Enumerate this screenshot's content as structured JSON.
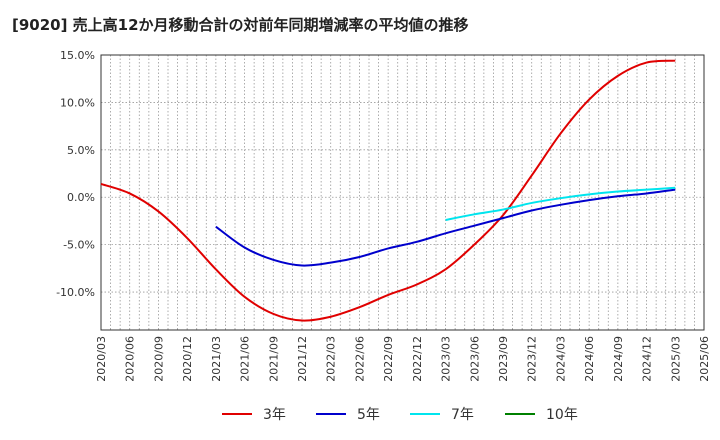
{
  "chart_data": {
    "type": "line",
    "title": "[9020]  売上高12か月移動合計の対前年同期増減率の平均値の推移",
    "xlabel": "",
    "ylabel": "",
    "x_ticks": [
      "2020/03",
      "2020/06",
      "2020/09",
      "2020/12",
      "2021/03",
      "2021/06",
      "2021/09",
      "2021/12",
      "2022/03",
      "2022/06",
      "2022/09",
      "2022/12",
      "2023/03",
      "2023/06",
      "2023/09",
      "2023/12",
      "2024/03",
      "2024/06",
      "2024/09",
      "2024/12",
      "2025/03",
      "2025/06"
    ],
    "y_ticks": [
      "15.0%",
      "10.0%",
      "5.0%",
      "0.0%",
      "-5.0%",
      "-10.0%"
    ],
    "ylim": [
      -14.0,
      15.0
    ],
    "grid": true,
    "legend_position": "bottom",
    "series": [
      {
        "name": "3年",
        "color": "#e00000",
        "points": [
          [
            "2020/03",
            1.4
          ],
          [
            "2020/06",
            0.4
          ],
          [
            "2020/09",
            -1.5
          ],
          [
            "2020/12",
            -4.3
          ],
          [
            "2021/03",
            -7.6
          ],
          [
            "2021/06",
            -10.5
          ],
          [
            "2021/09",
            -12.3
          ],
          [
            "2021/12",
            -13.0
          ],
          [
            "2022/03",
            -12.6
          ],
          [
            "2022/06",
            -11.6
          ],
          [
            "2022/09",
            -10.3
          ],
          [
            "2022/12",
            -9.2
          ],
          [
            "2023/03",
            -7.6
          ],
          [
            "2023/06",
            -5.0
          ],
          [
            "2023/09",
            -1.9
          ],
          [
            "2023/12",
            2.3
          ],
          [
            "2024/03",
            6.7
          ],
          [
            "2024/06",
            10.3
          ],
          [
            "2024/09",
            12.8
          ],
          [
            "2024/12",
            14.2
          ],
          [
            "2025/03",
            14.4
          ]
        ]
      },
      {
        "name": "5年",
        "color": "#0000cc",
        "points": [
          [
            "2021/03",
            -3.1
          ],
          [
            "2021/06",
            -5.3
          ],
          [
            "2021/09",
            -6.6
          ],
          [
            "2021/12",
            -7.2
          ],
          [
            "2022/03",
            -6.9
          ],
          [
            "2022/06",
            -6.3
          ],
          [
            "2022/09",
            -5.4
          ],
          [
            "2022/12",
            -4.7
          ],
          [
            "2023/03",
            -3.8
          ],
          [
            "2023/06",
            -3.0
          ],
          [
            "2023/09",
            -2.2
          ],
          [
            "2023/12",
            -1.4
          ],
          [
            "2024/03",
            -0.8
          ],
          [
            "2024/06",
            -0.3
          ],
          [
            "2024/09",
            0.1
          ],
          [
            "2024/12",
            0.4
          ],
          [
            "2025/03",
            0.8
          ]
        ]
      },
      {
        "name": "7年",
        "color": "#00e5ee",
        "points": [
          [
            "2023/03",
            -2.4
          ],
          [
            "2023/06",
            -1.8
          ],
          [
            "2023/09",
            -1.3
          ],
          [
            "2023/12",
            -0.6
          ],
          [
            "2024/03",
            -0.1
          ],
          [
            "2024/06",
            0.3
          ],
          [
            "2024/09",
            0.6
          ],
          [
            "2024/12",
            0.8
          ],
          [
            "2025/03",
            1.0
          ]
        ]
      },
      {
        "name": "10年",
        "color": "#008000",
        "points": []
      }
    ]
  }
}
